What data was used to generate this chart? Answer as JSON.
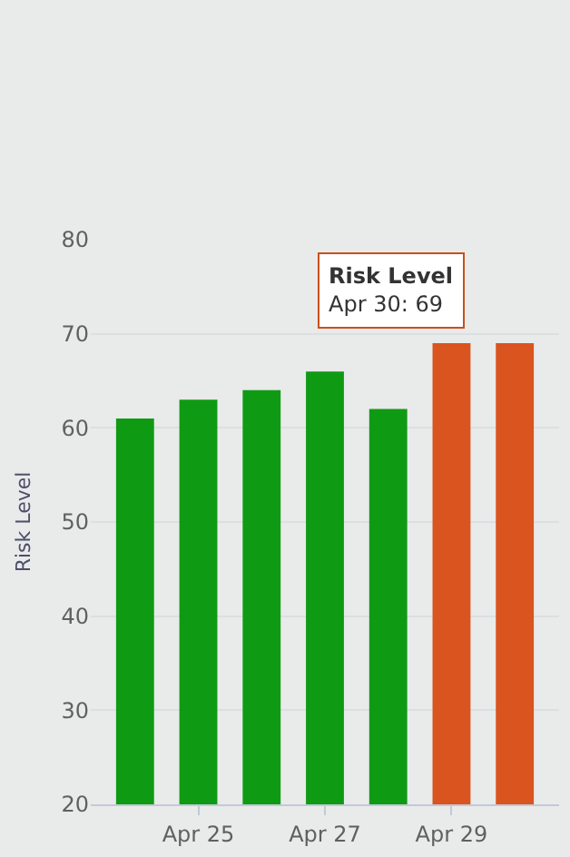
{
  "chart_data": {
    "type": "bar",
    "ylabel": "Risk Level",
    "categories": [
      null,
      "Apr 25",
      null,
      "Apr 27",
      null,
      "Apr 29",
      null
    ],
    "series": [
      {
        "name": "Risk Level",
        "values": [
          61,
          63,
          64,
          66,
          62,
          69,
          69
        ],
        "colors": [
          "#0f9a14",
          "#0f9a14",
          "#0f9a14",
          "#0f9a14",
          "#0f9a14",
          "#d9541e",
          "#d9541e"
        ]
      }
    ],
    "ylim": [
      20,
      80
    ],
    "yticks": [
      20,
      30,
      40,
      50,
      60,
      70,
      80
    ],
    "grid": "y",
    "legend": false,
    "annotations": [
      "Apr 30: 69"
    ]
  }
}
